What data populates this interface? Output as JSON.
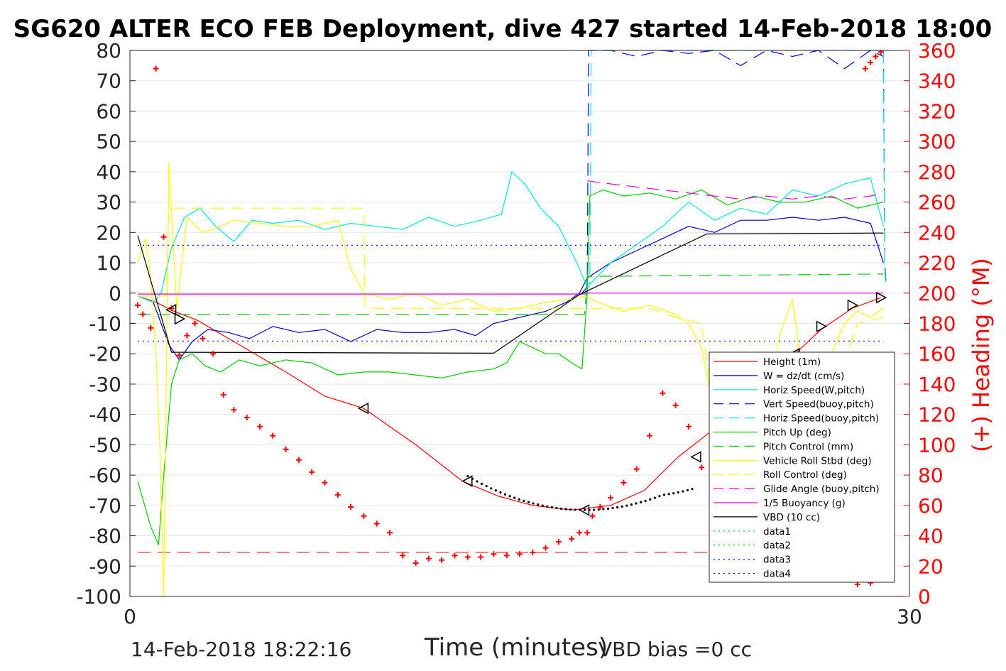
{
  "chart_data": {
    "type": "line",
    "title": "SG620 ALTER ECO FEB Deployment, dive 427 started 14-Feb-2018 18:00",
    "xlabel": "Time (minutes)",
    "ylabel": "",
    "y2label": "(+) Heading (°M)",
    "xlim": [
      0,
      30
    ],
    "ylim": [
      -100,
      80
    ],
    "y2lim": [
      0,
      360
    ],
    "x_ticks": [
      "0",
      "30"
    ],
    "y_ticks": [
      "80",
      "70",
      "60",
      "50",
      "40",
      "30",
      "20",
      "10",
      "0",
      "-10",
      "-20",
      "-30",
      "-40",
      "-50",
      "-60",
      "-70",
      "-80",
      "-90",
      "-100"
    ],
    "y2_ticks": [
      "360",
      "340",
      "320",
      "300",
      "280",
      "260",
      "240",
      "220",
      "200",
      "180",
      "160",
      "140",
      "120",
      "100",
      "80",
      "60",
      "40",
      "20",
      "0"
    ],
    "grid": true,
    "legend_position": "lower-right",
    "colors": {
      "height": "#ff0000",
      "w": "#0000cc",
      "horiz": "#00e5e5",
      "pitch": "#00cc00",
      "roll": "#ffff00",
      "glide": "#e500e5",
      "vbd": "#000000",
      "data_green": "#00cc00",
      "data_blue": "#0000cc",
      "heading": "#ff0000"
    },
    "series": [
      {
        "name": "Height (1m)",
        "color": "#ff0000",
        "dash": "",
        "x": [
          0.3,
          1.0,
          1.7,
          2.6,
          4,
          6,
          7.5,
          9,
          11,
          12.8,
          14.2,
          15.5,
          17,
          18.5,
          19.8,
          21.1,
          22.3,
          23.5,
          24.6,
          25.6,
          26.6,
          27.8,
          28.9
        ],
        "y": [
          -1,
          -3,
          -6,
          -9,
          -16,
          -26,
          -34,
          -38,
          -50,
          -62,
          -67,
          -70,
          -71.5,
          -70,
          -65,
          -54,
          -46,
          -37,
          -30,
          -20,
          -12,
          -5,
          -1.5
        ]
      },
      {
        "name": "W = dz/dt (cm/s)",
        "color": "#0000cc",
        "dash": "",
        "x": [
          0.3,
          0.9,
          1.2,
          1.5,
          1.9,
          2.4,
          3,
          3.8,
          4.6,
          5.5,
          6.5,
          7.5,
          8.5,
          9.5,
          10.5,
          11.5,
          12.5,
          13.3,
          14,
          15,
          16,
          16.8,
          17.3,
          17.6,
          18.5,
          19.5,
          20.5,
          21.5,
          22.5,
          23.5,
          24.5,
          25.5,
          26.5,
          27.5,
          28.5,
          29
        ],
        "y": [
          -1,
          -3,
          -10,
          -17,
          -22,
          -16,
          -12,
          -13,
          -15,
          -11,
          -13,
          -12,
          -16,
          -12,
          -13,
          -13,
          -12,
          -14,
          -10,
          -8,
          -6,
          -3,
          0,
          5,
          10,
          14,
          18,
          22,
          20,
          24,
          24,
          25,
          24,
          25,
          23,
          10
        ]
      },
      {
        "name": "Horiz Speed(W,pitch)",
        "color": "#00e5e5",
        "dash": "",
        "x": [
          0.3,
          0.9,
          1.2,
          1.6,
          2.1,
          2.7,
          3.3,
          4,
          4.7,
          5.5,
          6.5,
          7.5,
          8.5,
          9.5,
          10.5,
          11.5,
          12.5,
          13.5,
          14.3,
          14.7,
          15.2,
          15.8,
          16.5,
          17.2,
          17.6,
          18.5,
          19.5,
          20.5,
          21.5,
          22.5,
          23.5,
          24.5,
          25.5,
          26.5,
          27.5,
          28.5,
          29
        ],
        "y": [
          -1,
          -3,
          0,
          15,
          25,
          28,
          22,
          17,
          24,
          23,
          24,
          21,
          23,
          22,
          21,
          25,
          22,
          24,
          26,
          40,
          36,
          28,
          22,
          10,
          2,
          10,
          16,
          22,
          30,
          24,
          28,
          26,
          34,
          32,
          36,
          38,
          22
        ]
      },
      {
        "name": "Vert Speed(buoy,pitch)",
        "color": "#0000cc",
        "dash": "18,10",
        "x": [
          17.4,
          17.6,
          17.65,
          18.5,
          19.5,
          20.5,
          21.5,
          22.5,
          23.5,
          24.5,
          25.5,
          26.5,
          27.5,
          28.5,
          29,
          29.05,
          29.1
        ],
        "y": [
          0,
          2,
          80,
          80,
          78,
          80,
          79,
          80,
          75,
          80,
          78,
          80,
          74,
          80,
          78,
          10,
          3
        ]
      },
      {
        "name": "Horiz Speed(buoy,pitch)",
        "color": "#00e5e5",
        "dash": "18,10",
        "x": [
          17.5,
          17.7,
          17.75,
          18.5,
          19.5,
          20.5,
          21.5,
          22.5,
          23.5,
          24.5,
          25.5,
          26.5,
          27.5,
          28.5,
          29,
          29.05,
          29.1
        ],
        "y": [
          0,
          3,
          80,
          80,
          80,
          80,
          80,
          80,
          80,
          80,
          80,
          80,
          80,
          80,
          80,
          8,
          2
        ]
      },
      {
        "name": "Pitch Up (deg)",
        "color": "#00cc00",
        "dash": "",
        "x": [
          0.3,
          0.8,
          1.1,
          1.3,
          1.6,
          1.9,
          2.4,
          2.9,
          3.5,
          4.2,
          5,
          6,
          7,
          8,
          9,
          10,
          11,
          12,
          13,
          14,
          14.5,
          15,
          15.5,
          16,
          16.5,
          17,
          17.4,
          17.6,
          17.7,
          18.2,
          19,
          20,
          21,
          22,
          23,
          24,
          25,
          26,
          27,
          28,
          29
        ],
        "y": [
          -62,
          -77,
          -83,
          -60,
          -30,
          -22,
          -20,
          -24,
          -26,
          -22,
          -24,
          -22,
          -23,
          -27,
          -26,
          -26,
          -27,
          -28,
          -26,
          -25,
          -23,
          -16,
          -18,
          -20,
          -20,
          -23,
          -25,
          0,
          32,
          34,
          32,
          33,
          31,
          34,
          29,
          32,
          30,
          30,
          32,
          28,
          30
        ]
      },
      {
        "name": "Pitch Control (mm)",
        "color": "#00cc00",
        "dash": "18,10",
        "x": [
          0.3,
          17.5,
          17.6,
          29
        ],
        "y": [
          -7,
          -7,
          5.5,
          6.3
        ]
      },
      {
        "name": "Vehicle Roll Stbd (deg)",
        "color": "#ffff00",
        "dash": "",
        "x": [
          0.3,
          0.6,
          0.8,
          1.0,
          1.15,
          1.3,
          1.5,
          1.8,
          2.2,
          2.8,
          3.5,
          4,
          5,
          6,
          7,
          8,
          8.5,
          9,
          10,
          11,
          12,
          13,
          14,
          15,
          16,
          17,
          17.5,
          18,
          19,
          20,
          21,
          21.5,
          22,
          22.5,
          23,
          23.5,
          24,
          24.5,
          25,
          25.5,
          26,
          26.5,
          27,
          27.5,
          28,
          28.5,
          29
        ],
        "y": [
          10,
          18,
          5,
          -20,
          -50,
          -100,
          43,
          -5,
          25,
          20,
          22,
          24,
          23,
          22,
          22,
          24,
          8,
          0,
          -2,
          0,
          -4,
          -2,
          -6,
          -5,
          -3,
          -2,
          -1,
          -3,
          -6,
          -4,
          -7,
          -10,
          -18,
          -40,
          -42,
          -30,
          -33,
          -40,
          -14,
          -2,
          -35,
          -43,
          -20,
          -10,
          -6,
          -8,
          -5
        ]
      },
      {
        "name": "Roll Control (deg)",
        "color": "#ffff00",
        "dash": "18,10",
        "x": [
          0.3,
          1.4,
          1.5,
          2.5,
          9,
          9.05,
          17.5,
          20,
          21,
          22,
          22.5,
          23,
          24,
          25,
          26,
          27,
          28,
          29
        ],
        "y": [
          -1,
          -1,
          28,
          28,
          28,
          -5,
          -5,
          -5,
          -8,
          -10,
          -40,
          -36,
          -30,
          -36,
          -36,
          -36,
          -10,
          -8
        ]
      },
      {
        "name": "Glide Angle (buoy,pitch)",
        "color": "#e500e5",
        "dash": "18,10",
        "x": [
          17.6,
          18.5,
          19.5,
          20.5,
          21.5,
          22.5,
          23.5,
          24.5,
          25.5,
          26.5,
          27.5,
          28.5,
          29
        ],
        "y": [
          37,
          36,
          35,
          34,
          33,
          32,
          31,
          32,
          31,
          32,
          31,
          32,
          33
        ]
      },
      {
        "name": "1/5 Buoyancy (g)",
        "color": "#e500e5",
        "dash": "",
        "x": [
          0.3,
          17.5,
          17.55,
          29
        ],
        "y": [
          -0.3,
          -0.3,
          0,
          0
        ]
      },
      {
        "name": "VBD (10 cc)",
        "color": "#000000",
        "dash": "",
        "x": [
          0.3,
          1.6,
          2.0,
          14.0,
          17.3,
          22.2,
          29
        ],
        "y": [
          19,
          -19.5,
          -19.5,
          -19.8,
          -0.5,
          19.5,
          19.8
        ]
      },
      {
        "name": "data1",
        "color": "#00cc00",
        "dash": "2,5",
        "x": [],
        "y": []
      },
      {
        "name": "data2",
        "color": "#00cc00",
        "dash": "2,5",
        "x": [],
        "y": []
      },
      {
        "name": "data3",
        "color": "#0000cc",
        "dash": "2,5",
        "x": [
          0.3,
          29
        ],
        "y": [
          15.8,
          15.8
        ]
      },
      {
        "name": "data4",
        "color": "#0000cc",
        "dash": "2,5",
        "x": [
          0.3,
          29
        ],
        "y": [
          -15.8,
          -15.8
        ]
      }
    ],
    "heading_mean_dashed": {
      "color": "#ff0000",
      "y2": 29,
      "x": [
        0.3,
        29
      ]
    },
    "heading": {
      "name": "(+) Heading",
      "x": [
        0.3,
        0.5,
        0.8,
        1.0,
        1.3,
        1.6,
        1.9,
        2.2,
        2.5,
        2.8,
        3.2,
        3.6,
        4,
        4.5,
        5,
        5.5,
        6,
        6.5,
        7,
        7.5,
        8,
        8.5,
        9,
        9.5,
        10,
        10.5,
        11,
        11.5,
        12,
        12.5,
        13,
        13.5,
        14,
        14.5,
        15,
        15.5,
        16,
        16.5,
        17,
        17.3,
        17.6,
        17.8,
        18.1,
        18.5,
        19,
        19.5,
        20,
        20.5,
        21,
        21.5,
        22,
        22.5,
        23,
        23.5,
        24,
        24.5,
        25,
        25.5,
        26,
        26.5,
        27,
        27.5,
        28,
        28.5
      ],
      "y": [
        192,
        186,
        177,
        348,
        237,
        190,
        159,
        172,
        180,
        170,
        160,
        133,
        123,
        118,
        112,
        106,
        97,
        90,
        82,
        75,
        67,
        59,
        53,
        48,
        42,
        27,
        22,
        25,
        24,
        27,
        26,
        26,
        28,
        27,
        28,
        29,
        32,
        36,
        38,
        42,
        42,
        53,
        59,
        65,
        75,
        84,
        106,
        134,
        126,
        112,
        85,
        80,
        70,
        66,
        59,
        47,
        39,
        31,
        26,
        20,
        11,
        13,
        8,
        9
      ]
    },
    "heading_end": {
      "x": [
        28.3,
        28.5,
        28.7,
        28.9
      ],
      "y": [
        348,
        352,
        356,
        359
      ]
    },
    "triangles": {
      "x": [
        1.6,
        1.9,
        9.0,
        13.0,
        17.5,
        21.8,
        22.8,
        23.8,
        24.6,
        25.6,
        26.6,
        27.8,
        28.9
      ],
      "y": [
        -5.5,
        -8.5,
        -38,
        -62,
        -71.5,
        -54,
        -46,
        -37,
        -30,
        -20,
        -11,
        -4,
        -1.5
      ],
      "dir": [
        "left",
        "right",
        "left",
        "left",
        "left",
        "left",
        "right",
        "right",
        "right",
        "left",
        "right",
        "right",
        "right"
      ]
    },
    "annotations": {
      "timestamp": "14-Feb-2018 18:22:16",
      "vbd_bias": "VBD bias =0 cc"
    }
  }
}
